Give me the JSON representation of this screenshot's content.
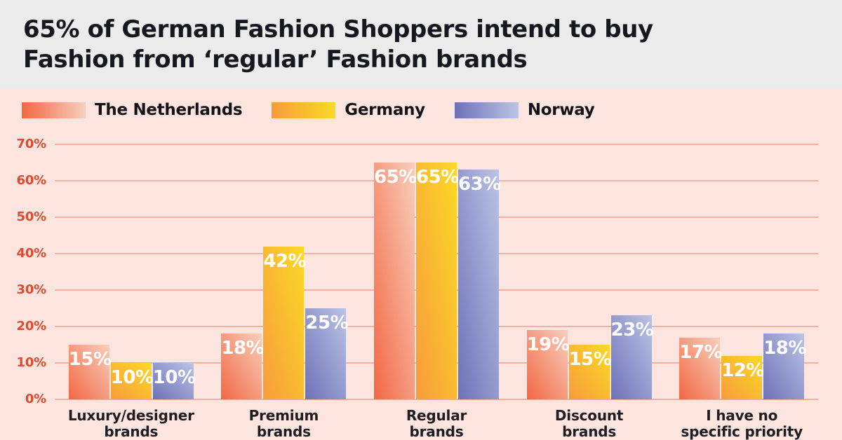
{
  "title": "65% of German Fashion Shoppers intend to buy Fashion from ‘regular’ Fashion brands",
  "title_lines": [
    "65% of German Fashion Shoppers intend to buy",
    "Fashion from ‘regular’ Fashion brands"
  ],
  "chart_data": {
    "type": "bar",
    "title": "65% of German Fashion Shoppers intend to buy Fashion from ‘regular’ Fashion brands",
    "categories": [
      "Luxury/designer brands",
      "Premium brands",
      "Regular brands",
      "Discount brands",
      "I have no specific priority"
    ],
    "categories_display": [
      "Luxury/designer\nbrands",
      "Premium\nbrands",
      "Regular\nbrands",
      "Discount\nbrands",
      "I have no\nspecific priority"
    ],
    "series": [
      {
        "name": "The Netherlands",
        "values": [
          15,
          18,
          65,
          19,
          17
        ],
        "color_start": "#F26744",
        "color_end": "#F8CFBC"
      },
      {
        "name": "Germany",
        "values": [
          10,
          42,
          65,
          15,
          12
        ],
        "color_start": "#F79C3B",
        "color_end": "#FBD927"
      },
      {
        "name": "Norway",
        "values": [
          10,
          25,
          63,
          23,
          18
        ],
        "color_start": "#6C72B7",
        "color_end": "#BCC3E5"
      }
    ],
    "xlabel": "",
    "ylabel": "",
    "ylim": [
      0,
      70
    ],
    "yticks": [
      0,
      10,
      20,
      30,
      40,
      50,
      60,
      70
    ],
    "ytick_suffix": "%",
    "value_label_suffix": "%",
    "grid": true,
    "legend_position": "top-left"
  },
  "colors": {
    "header_bg": "#EBEBEB",
    "chart_bg": "#FCE4DF",
    "gridline": "#F3B1A4",
    "ytick_text": "#E2492E",
    "title_text": "#17171F",
    "category_text": "#1D1D22",
    "legend_text": "#141418",
    "value_label_text": "#FFFFFF"
  }
}
